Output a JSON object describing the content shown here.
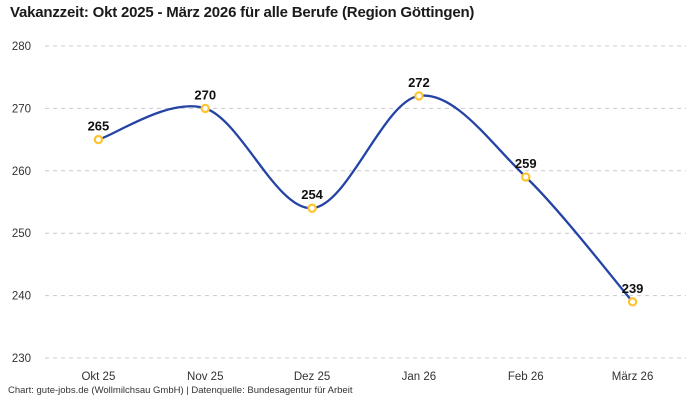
{
  "title": "Vakanzzeit: Okt 2025 - März 2026 für alle Berufe (Region Göttingen)",
  "footer": "Chart: gute-jobs.de (Wollmilchsau GmbH) | Datenquelle: Bundesagentur für Arbeit",
  "chart_data": {
    "type": "line",
    "title": "Vakanzzeit: Okt 2025 - März 2026 für alle Berufe (Region Göttingen)",
    "categories": [
      "Okt 25",
      "Nov 25",
      "Dez 25",
      "Jan 26",
      "Feb 26",
      "März 26"
    ],
    "values": [
      265,
      270,
      254,
      272,
      259,
      239
    ],
    "data_labels": [
      "265",
      "270",
      "254",
      "272",
      "259",
      "239"
    ],
    "xlabel": "",
    "ylabel": "",
    "ylim": [
      230,
      280
    ],
    "yticks": [
      280,
      270,
      260,
      250,
      240,
      230
    ],
    "grid": "horizontal-dashed",
    "legend": "none",
    "smooth": true,
    "footer": "Chart: gute-jobs.de (Wollmilchsau GmbH) | Datenquelle: Bundesagentur für Arbeit",
    "colors": {
      "line": "#2443a5",
      "marker_stroke": "#fdc431",
      "marker_fill": "#ffffff",
      "grid": "#c9c9c9",
      "title_text": "#1a1a1a",
      "axis_text": "#333333",
      "data_label": "#111111",
      "background": "#ffffff"
    }
  }
}
